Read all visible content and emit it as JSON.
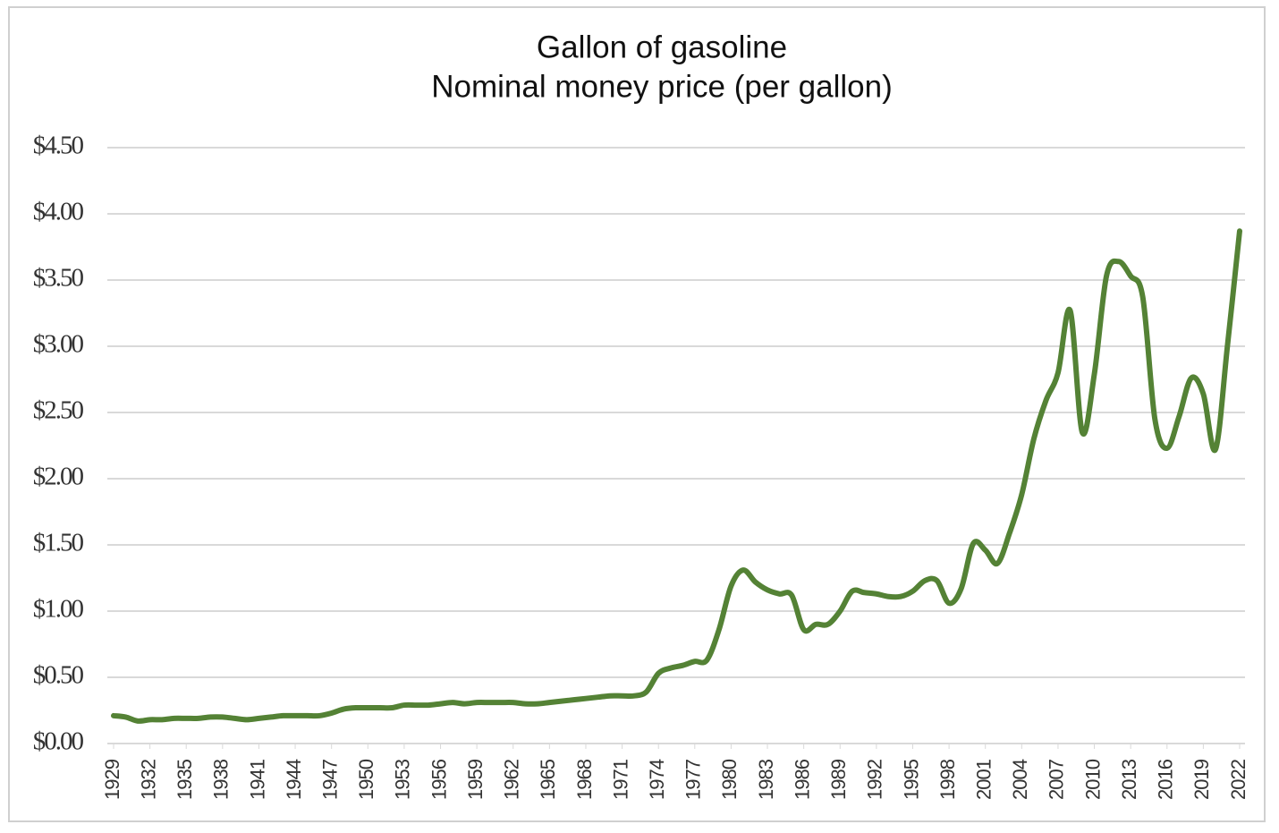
{
  "chart_data": {
    "type": "line",
    "title": "Gallon of gasoline",
    "subtitle": "Nominal money price (per gallon)",
    "x": [
      1929,
      1930,
      1931,
      1932,
      1933,
      1934,
      1935,
      1936,
      1937,
      1938,
      1939,
      1940,
      1941,
      1942,
      1943,
      1944,
      1945,
      1946,
      1947,
      1948,
      1949,
      1950,
      1951,
      1952,
      1953,
      1954,
      1955,
      1956,
      1957,
      1958,
      1959,
      1960,
      1961,
      1962,
      1963,
      1964,
      1965,
      1966,
      1967,
      1968,
      1969,
      1970,
      1971,
      1972,
      1973,
      1974,
      1975,
      1976,
      1977,
      1978,
      1979,
      1980,
      1981,
      1982,
      1983,
      1984,
      1985,
      1986,
      1987,
      1988,
      1989,
      1990,
      1991,
      1992,
      1993,
      1994,
      1995,
      1996,
      1997,
      1998,
      1999,
      2000,
      2001,
      2002,
      2003,
      2004,
      2005,
      2006,
      2007,
      2008,
      2009,
      2010,
      2011,
      2012,
      2013,
      2014,
      2015,
      2016,
      2017,
      2018,
      2019,
      2020,
      2021,
      2022
    ],
    "series": [
      {
        "color": "#548235",
        "values": [
          0.21,
          0.2,
          0.17,
          0.18,
          0.18,
          0.19,
          0.19,
          0.19,
          0.2,
          0.2,
          0.19,
          0.18,
          0.19,
          0.2,
          0.21,
          0.21,
          0.21,
          0.21,
          0.23,
          0.26,
          0.27,
          0.27,
          0.27,
          0.27,
          0.29,
          0.29,
          0.29,
          0.3,
          0.31,
          0.3,
          0.31,
          0.31,
          0.31,
          0.31,
          0.3,
          0.3,
          0.31,
          0.32,
          0.33,
          0.34,
          0.35,
          0.36,
          0.36,
          0.36,
          0.39,
          0.53,
          0.57,
          0.59,
          0.62,
          0.63,
          0.86,
          1.19,
          1.31,
          1.22,
          1.16,
          1.13,
          1.12,
          0.86,
          0.9,
          0.9,
          1.0,
          1.15,
          1.14,
          1.13,
          1.11,
          1.11,
          1.15,
          1.23,
          1.23,
          1.06,
          1.17,
          1.51,
          1.46,
          1.36,
          1.59,
          1.88,
          2.3,
          2.59,
          2.8,
          3.27,
          2.35,
          2.79,
          3.53,
          3.64,
          3.53,
          3.37,
          2.45,
          2.23,
          2.47,
          2.76,
          2.64,
          2.22,
          3.01,
          3.87
        ]
      }
    ],
    "xlim": [
      1929,
      2022
    ],
    "xticks": [
      1929,
      1932,
      1935,
      1938,
      1941,
      1944,
      1947,
      1950,
      1953,
      1956,
      1959,
      1962,
      1965,
      1968,
      1971,
      1974,
      1977,
      1980,
      1983,
      1986,
      1989,
      1992,
      1995,
      1998,
      2001,
      2004,
      2007,
      2010,
      2013,
      2016,
      2019,
      2022
    ],
    "ylim": [
      0,
      4.5
    ],
    "yticks": [
      {
        "value": 0,
        "label": "$0.00"
      },
      {
        "value": 0.5,
        "label": "$0.50"
      },
      {
        "value": 1,
        "label": "$1.00"
      },
      {
        "value": 1.5,
        "label": "$1.50"
      },
      {
        "value": 2,
        "label": "$2.00"
      },
      {
        "value": 2.5,
        "label": "$2.50"
      },
      {
        "value": 3,
        "label": "$3.00"
      },
      {
        "value": 3.5,
        "label": "$3.50"
      },
      {
        "value": 4,
        "label": "$4.00"
      },
      {
        "value": 4.5,
        "label": "$4.50"
      }
    ],
    "grid": true
  }
}
